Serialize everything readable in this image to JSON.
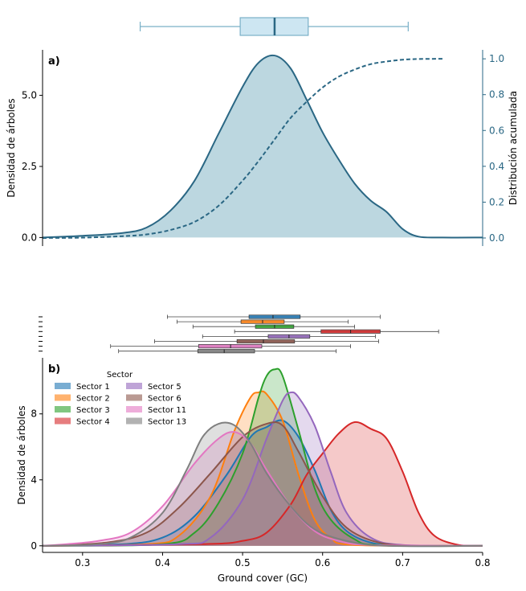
{
  "chart_data": [
    {
      "type": "area",
      "panel_label": "a)",
      "ylabel": "Densidad de árboles",
      "ylabel_right": "Distribución acumulada",
      "xlim": [
        0.25,
        0.8
      ],
      "ylim": [
        -0.3,
        6.6
      ],
      "yticks": [
        0.0,
        2.5,
        5.0
      ],
      "yticks_right": [
        0.0,
        0.2,
        0.4,
        0.6,
        0.8,
        1.0
      ],
      "ylim_right": [
        -0.045,
        1.05
      ],
      "colors": {
        "line": "#2a6784",
        "fill": "#bcd7e0",
        "box": "#cde6f2",
        "whisker": "#7ab0c8"
      },
      "series": [
        {
          "name": "density",
          "x": [
            0.25,
            0.3,
            0.35,
            0.38,
            0.41,
            0.44,
            0.47,
            0.5,
            0.52,
            0.54,
            0.56,
            0.58,
            0.6,
            0.62,
            0.64,
            0.66,
            0.68,
            0.7,
            0.72,
            0.75,
            0.8
          ],
          "y": [
            0.0,
            0.06,
            0.16,
            0.35,
            0.95,
            2.0,
            3.65,
            5.3,
            6.15,
            6.4,
            5.95,
            4.85,
            3.7,
            2.75,
            1.9,
            1.3,
            0.9,
            0.3,
            0.03,
            0.0,
            0.0
          ]
        },
        {
          "name": "cdf",
          "axis": "right",
          "x": [
            0.25,
            0.3,
            0.35,
            0.38,
            0.41,
            0.44,
            0.47,
            0.5,
            0.52,
            0.54,
            0.56,
            0.58,
            0.6,
            0.62,
            0.64,
            0.66,
            0.68,
            0.7,
            0.72,
            0.75
          ],
          "y": [
            0.0,
            0.002,
            0.01,
            0.02,
            0.045,
            0.09,
            0.18,
            0.32,
            0.43,
            0.55,
            0.67,
            0.76,
            0.84,
            0.9,
            0.94,
            0.97,
            0.985,
            0.995,
            0.999,
            1.0
          ]
        }
      ],
      "boxplot": {
        "whisker_low": 0.372,
        "q1": 0.497,
        "median": 0.54,
        "q3": 0.582,
        "whisker_high": 0.707
      }
    },
    {
      "type": "area",
      "panel_label": "b)",
      "xlabel": "Ground cover (GC)",
      "ylabel": "Densidad de árboles",
      "xlim": [
        0.25,
        0.8
      ],
      "ylim": [
        -0.4,
        11.4
      ],
      "xticks": [
        0.3,
        0.4,
        0.5,
        0.6,
        0.7,
        0.8
      ],
      "yticks": [
        0,
        4,
        8
      ],
      "legend": {
        "title": "Sector",
        "placement": "top-left"
      },
      "series": [
        {
          "name": "Sector 1",
          "color": "#1f77b4",
          "x": [
            0.25,
            0.35,
            0.4,
            0.44,
            0.48,
            0.51,
            0.53,
            0.55,
            0.57,
            0.59,
            0.61,
            0.63,
            0.66,
            0.7,
            0.8
          ],
          "y": [
            0.0,
            0.1,
            0.5,
            1.8,
            4.3,
            6.6,
            7.2,
            7.6,
            6.6,
            4.6,
            2.2,
            0.9,
            0.2,
            0.0,
            0.0
          ],
          "box": [
            0.406,
            0.508,
            0.538,
            0.572,
            0.672
          ]
        },
        {
          "name": "Sector 2",
          "color": "#ff7f0e",
          "x": [
            0.25,
            0.38,
            0.42,
            0.46,
            0.49,
            0.51,
            0.52,
            0.53,
            0.55,
            0.57,
            0.59,
            0.61,
            0.64,
            0.8
          ],
          "y": [
            0.0,
            0.1,
            0.6,
            3.0,
            7.0,
            9.0,
            9.3,
            9.2,
            7.6,
            4.3,
            1.6,
            0.5,
            0.05,
            0.0
          ],
          "box": [
            0.418,
            0.498,
            0.525,
            0.552,
            0.632
          ]
        },
        {
          "name": "Sector 3",
          "color": "#2ca02c",
          "x": [
            0.25,
            0.4,
            0.44,
            0.47,
            0.5,
            0.52,
            0.53,
            0.54,
            0.55,
            0.57,
            0.59,
            0.61,
            0.64,
            0.67,
            0.8
          ],
          "y": [
            0.0,
            0.1,
            0.8,
            2.6,
            5.6,
            9.0,
            10.3,
            10.7,
            10.3,
            7.0,
            3.5,
            1.6,
            0.4,
            0.05,
            0.0
          ],
          "box": [
            0.438,
            0.516,
            0.54,
            0.564,
            0.64
          ]
        },
        {
          "name": "Sector 4",
          "color": "#d62728",
          "x": [
            0.25,
            0.45,
            0.5,
            0.53,
            0.56,
            0.58,
            0.6,
            0.62,
            0.64,
            0.66,
            0.68,
            0.7,
            0.72,
            0.74,
            0.77,
            0.8
          ],
          "y": [
            0.0,
            0.1,
            0.3,
            0.8,
            2.5,
            4.3,
            5.6,
            6.8,
            7.5,
            7.1,
            6.5,
            4.5,
            2.0,
            0.6,
            0.05,
            0.0
          ],
          "box": [
            0.49,
            0.598,
            0.635,
            0.672,
            0.745
          ]
        },
        {
          "name": "Sector 5",
          "color": "#9467bd",
          "x": [
            0.25,
            0.42,
            0.46,
            0.5,
            0.53,
            0.55,
            0.56,
            0.57,
            0.59,
            0.61,
            0.63,
            0.66,
            0.7,
            0.8
          ],
          "y": [
            0.0,
            0.1,
            0.5,
            2.8,
            6.5,
            8.8,
            9.3,
            9.0,
            7.3,
            4.5,
            2.0,
            0.5,
            0.05,
            0.0
          ],
          "box": [
            0.45,
            0.532,
            0.558,
            0.584,
            0.666
          ]
        },
        {
          "name": "Sector 6",
          "color": "#8c564b",
          "x": [
            0.25,
            0.33,
            0.38,
            0.42,
            0.46,
            0.5,
            0.53,
            0.55,
            0.57,
            0.6,
            0.63,
            0.67,
            0.72,
            0.8
          ],
          "y": [
            0.0,
            0.2,
            0.8,
            2.3,
            4.4,
            6.6,
            7.4,
            7.3,
            5.7,
            3.0,
            1.1,
            0.2,
            0.0,
            0.0
          ],
          "box": [
            0.39,
            0.493,
            0.526,
            0.565,
            0.67
          ]
        },
        {
          "name": "Sector 11",
          "color": "#e377c2",
          "x": [
            0.25,
            0.28,
            0.32,
            0.36,
            0.4,
            0.44,
            0.47,
            0.49,
            0.51,
            0.53,
            0.56,
            0.59,
            0.62,
            0.66,
            0.8
          ],
          "y": [
            0.0,
            0.1,
            0.3,
            0.8,
            2.4,
            5.0,
            6.5,
            6.9,
            6.2,
            4.6,
            2.4,
            0.9,
            0.3,
            0.05,
            0.0
          ],
          "box": [
            0.335,
            0.445,
            0.485,
            0.524,
            0.635
          ]
        },
        {
          "name": "Sector 13",
          "color": "#7f7f7f",
          "x": [
            0.25,
            0.32,
            0.36,
            0.4,
            0.43,
            0.45,
            0.47,
            0.49,
            0.51,
            0.53,
            0.56,
            0.59,
            0.63,
            0.68,
            0.8
          ],
          "y": [
            0.0,
            0.1,
            0.5,
            2.0,
            4.6,
            6.6,
            7.4,
            7.3,
            6.2,
            4.4,
            2.4,
            1.0,
            0.3,
            0.0,
            0.0
          ],
          "box": [
            0.345,
            0.444,
            0.477,
            0.515,
            0.617
          ]
        }
      ]
    }
  ]
}
